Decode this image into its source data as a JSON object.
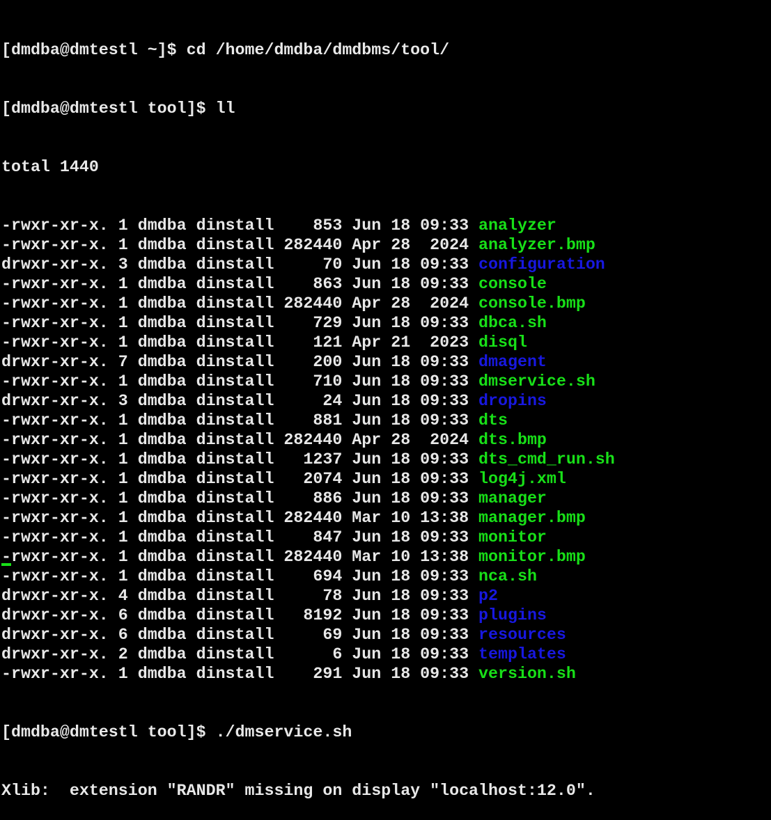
{
  "colors": {
    "background": "#000000",
    "text": "#e8e8e8",
    "executable": "#18e018",
    "directory": "#1818e0"
  },
  "commands": [
    "[dmdba@dmtestl ~]$ cd /home/dmdba/dmdbms/tool/",
    "[dmdba@dmtestl tool]$ ll"
  ],
  "total": "total 1440",
  "listing": [
    {
      "perm": "-rwxr-xr-x.",
      "links": "1",
      "user": "dmdba",
      "group": "dinstall",
      "size": "853",
      "month": "Jun",
      "day": "18",
      "time": "09:33",
      "name": "analyzer",
      "type": "file"
    },
    {
      "perm": "-rwxr-xr-x.",
      "links": "1",
      "user": "dmdba",
      "group": "dinstall",
      "size": "282440",
      "month": "Apr",
      "day": "28",
      "time": "2024",
      "name": "analyzer.bmp",
      "type": "file"
    },
    {
      "perm": "drwxr-xr-x.",
      "links": "3",
      "user": "dmdba",
      "group": "dinstall",
      "size": "70",
      "month": "Jun",
      "day": "18",
      "time": "09:33",
      "name": "configuration",
      "type": "dir"
    },
    {
      "perm": "-rwxr-xr-x.",
      "links": "1",
      "user": "dmdba",
      "group": "dinstall",
      "size": "863",
      "month": "Jun",
      "day": "18",
      "time": "09:33",
      "name": "console",
      "type": "file"
    },
    {
      "perm": "-rwxr-xr-x.",
      "links": "1",
      "user": "dmdba",
      "group": "dinstall",
      "size": "282440",
      "month": "Apr",
      "day": "28",
      "time": "2024",
      "name": "console.bmp",
      "type": "file"
    },
    {
      "perm": "-rwxr-xr-x.",
      "links": "1",
      "user": "dmdba",
      "group": "dinstall",
      "size": "729",
      "month": "Jun",
      "day": "18",
      "time": "09:33",
      "name": "dbca.sh",
      "type": "file"
    },
    {
      "perm": "-rwxr-xr-x.",
      "links": "1",
      "user": "dmdba",
      "group": "dinstall",
      "size": "121",
      "month": "Apr",
      "day": "21",
      "time": "2023",
      "name": "disql",
      "type": "file"
    },
    {
      "perm": "drwxr-xr-x.",
      "links": "7",
      "user": "dmdba",
      "group": "dinstall",
      "size": "200",
      "month": "Jun",
      "day": "18",
      "time": "09:33",
      "name": "dmagent",
      "type": "dir"
    },
    {
      "perm": "-rwxr-xr-x.",
      "links": "1",
      "user": "dmdba",
      "group": "dinstall",
      "size": "710",
      "month": "Jun",
      "day": "18",
      "time": "09:33",
      "name": "dmservice.sh",
      "type": "file"
    },
    {
      "perm": "drwxr-xr-x.",
      "links": "3",
      "user": "dmdba",
      "group": "dinstall",
      "size": "24",
      "month": "Jun",
      "day": "18",
      "time": "09:33",
      "name": "dropins",
      "type": "dir"
    },
    {
      "perm": "-rwxr-xr-x.",
      "links": "1",
      "user": "dmdba",
      "group": "dinstall",
      "size": "881",
      "month": "Jun",
      "day": "18",
      "time": "09:33",
      "name": "dts",
      "type": "file"
    },
    {
      "perm": "-rwxr-xr-x.",
      "links": "1",
      "user": "dmdba",
      "group": "dinstall",
      "size": "282440",
      "month": "Apr",
      "day": "28",
      "time": "2024",
      "name": "dts.bmp",
      "type": "file"
    },
    {
      "perm": "-rwxr-xr-x.",
      "links": "1",
      "user": "dmdba",
      "group": "dinstall",
      "size": "1237",
      "month": "Jun",
      "day": "18",
      "time": "09:33",
      "name": "dts_cmd_run.sh",
      "type": "file"
    },
    {
      "perm": "-rwxr-xr-x.",
      "links": "1",
      "user": "dmdba",
      "group": "dinstall",
      "size": "2074",
      "month": "Jun",
      "day": "18",
      "time": "09:33",
      "name": "log4j.xml",
      "type": "file"
    },
    {
      "perm": "-rwxr-xr-x.",
      "links": "1",
      "user": "dmdba",
      "group": "dinstall",
      "size": "886",
      "month": "Jun",
      "day": "18",
      "time": "09:33",
      "name": "manager",
      "type": "file"
    },
    {
      "perm": "-rwxr-xr-x.",
      "links": "1",
      "user": "dmdba",
      "group": "dinstall",
      "size": "282440",
      "month": "Mar",
      "day": "10",
      "time": "13:38",
      "name": "manager.bmp",
      "type": "file"
    },
    {
      "perm": "-rwxr-xr-x.",
      "links": "1",
      "user": "dmdba",
      "group": "dinstall",
      "size": "847",
      "month": "Jun",
      "day": "18",
      "time": "09:33",
      "name": "monitor",
      "type": "file"
    },
    {
      "perm": "-rwxr-xr-x.",
      "links": "1",
      "user": "dmdba",
      "group": "dinstall",
      "size": "282440",
      "month": "Mar",
      "day": "10",
      "time": "13:38",
      "name": "monitor.bmp",
      "type": "file"
    },
    {
      "perm": "-rwxr-xr-x.",
      "links": "1",
      "user": "dmdba",
      "group": "dinstall",
      "size": "694",
      "month": "Jun",
      "day": "18",
      "time": "09:33",
      "name": "nca.sh",
      "type": "file"
    },
    {
      "perm": "drwxr-xr-x.",
      "links": "4",
      "user": "dmdba",
      "group": "dinstall",
      "size": "78",
      "month": "Jun",
      "day": "18",
      "time": "09:33",
      "name": "p2",
      "type": "dir"
    },
    {
      "perm": "drwxr-xr-x.",
      "links": "6",
      "user": "dmdba",
      "group": "dinstall",
      "size": "8192",
      "month": "Jun",
      "day": "18",
      "time": "09:33",
      "name": "plugins",
      "type": "dir"
    },
    {
      "perm": "drwxr-xr-x.",
      "links": "6",
      "user": "dmdba",
      "group": "dinstall",
      "size": "69",
      "month": "Jun",
      "day": "18",
      "time": "09:33",
      "name": "resources",
      "type": "dir"
    },
    {
      "perm": "drwxr-xr-x.",
      "links": "2",
      "user": "dmdba",
      "group": "dinstall",
      "size": "6",
      "month": "Jun",
      "day": "18",
      "time": "09:33",
      "name": "templates",
      "type": "dir"
    },
    {
      "perm": "-rwxr-xr-x.",
      "links": "1",
      "user": "dmdba",
      "group": "dinstall",
      "size": "291",
      "month": "Jun",
      "day": "18",
      "time": "09:33",
      "name": "version.sh",
      "type": "file"
    }
  ],
  "after": [
    "[dmdba@dmtestl tool]$ ./dmservice.sh",
    "Xlib:  extension \"RANDR\" missing on display \"localhost:12.0\"."
  ]
}
